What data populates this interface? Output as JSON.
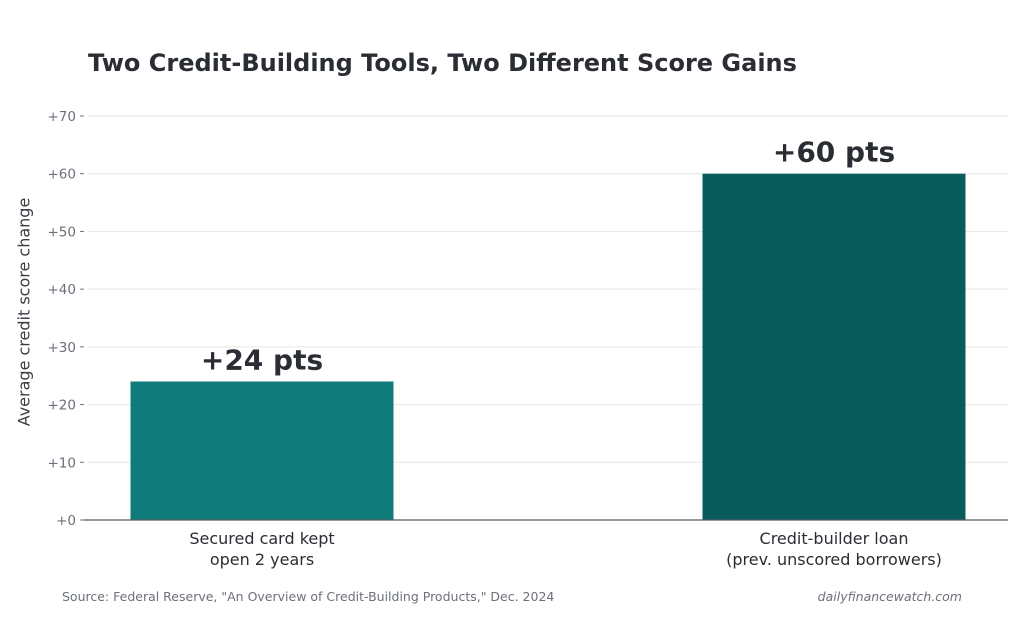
{
  "chart_data": {
    "type": "bar",
    "title": "Two Credit-Building Tools, Two Different Score Gains",
    "ylabel": "Average credit score change",
    "xlabel": "",
    "categories": [
      [
        "Secured card kept",
        "open 2 years"
      ],
      [
        "Credit-builder loan",
        "(prev. unscored borrowers)"
      ]
    ],
    "values": [
      24,
      60
    ],
    "data_labels": [
      "+24 pts",
      "+60 pts"
    ],
    "bar_colors": [
      "#0f7b7a",
      "#0a5c5c"
    ],
    "ylim": [
      0,
      70
    ],
    "yticks": [
      0,
      10,
      20,
      30,
      40,
      50,
      60,
      70
    ],
    "ytick_labels": [
      "+0",
      "+10",
      "+20",
      "+30",
      "+40",
      "+50",
      "+60",
      "+70"
    ],
    "grid": true,
    "legend": "none"
  },
  "footer": {
    "source": "Source: Federal Reserve, \"An Overview of Credit-Building Products,\" Dec. 2024",
    "brand": "dailyfinancewatch.com"
  },
  "colors": {
    "text": "#2a2d33",
    "muted": "#6b7079",
    "grid": "#e6e6e6",
    "axis": "#555a62"
  }
}
